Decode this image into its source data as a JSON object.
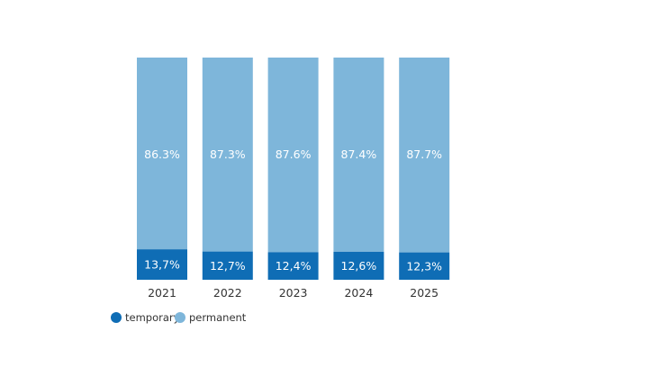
{
  "chart_data": {
    "type": "bar",
    "stacked": true,
    "normalized": true,
    "categories": [
      "2021",
      "2022",
      "2023",
      "2024",
      "2025"
    ],
    "series": [
      {
        "name": "temporary",
        "values": [
          13.7,
          12.7,
          12.4,
          12.6,
          12.3
        ],
        "labels": [
          "13,7%",
          "12,7%",
          "12,4%",
          "12,6%",
          "12,3%"
        ],
        "color": "#0f6db5"
      },
      {
        "name": "permanent",
        "values": [
          86.3,
          87.3,
          87.6,
          87.4,
          87.7
        ],
        "labels": [
          "86.3%",
          "87.3%",
          "87.6%",
          "87.4%",
          "87.7%"
        ],
        "color": "#7eb6da"
      }
    ],
    "ylim": [
      0,
      100
    ],
    "grid": false,
    "legend_position": "bottom-left",
    "label_color": "#ffffff",
    "tick_color": "#333333"
  }
}
